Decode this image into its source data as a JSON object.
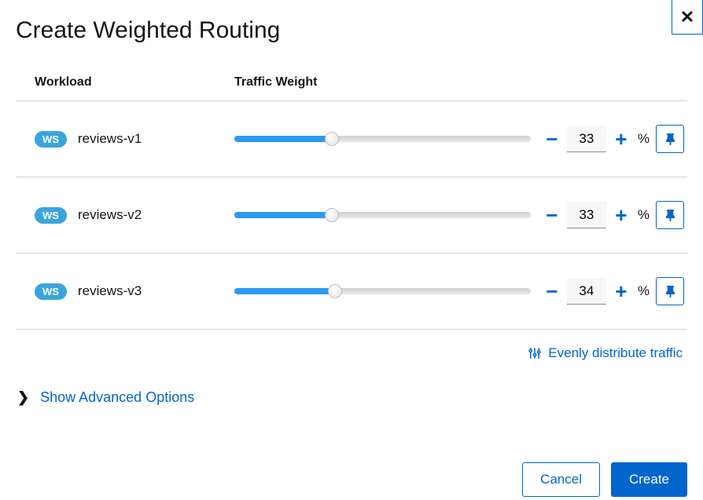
{
  "colors": {
    "primary": "#0066cc",
    "slider_fill": "#2b9af3",
    "badge_bg": "#39a5dc",
    "border": "#d2d2d2",
    "text": "#151515"
  },
  "dialog": {
    "title": "Create Weighted Routing",
    "close_label": "✕"
  },
  "table": {
    "header_workload": "Workload",
    "header_traffic": "Traffic Weight",
    "badge_text": "WS",
    "percent_symbol": "%",
    "minus_symbol": "−",
    "plus_symbol": "+"
  },
  "workloads": [
    {
      "name": "reviews-v1",
      "weight": 33
    },
    {
      "name": "reviews-v2",
      "weight": 33
    },
    {
      "name": "reviews-v3",
      "weight": 34
    }
  ],
  "actions": {
    "evenly_distribute": "Evenly distribute traffic",
    "advanced_toggle": "Show Advanced Options"
  },
  "footer": {
    "cancel": "Cancel",
    "create": "Create"
  }
}
